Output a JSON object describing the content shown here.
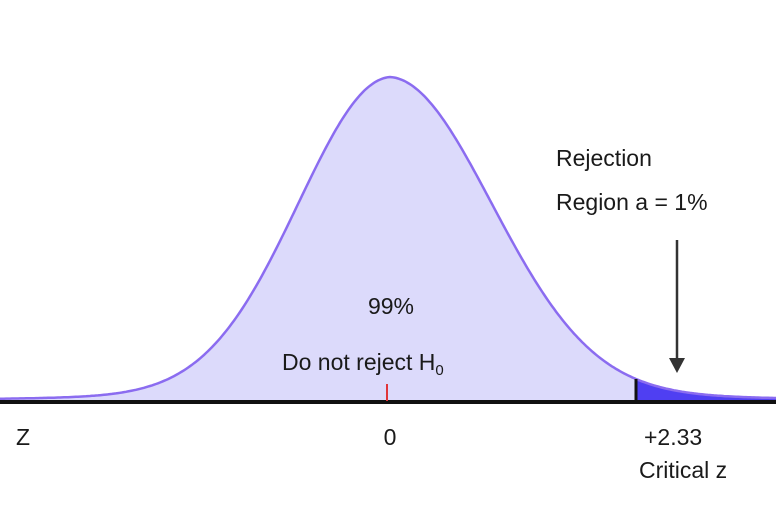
{
  "diagram": {
    "z_label": "Z",
    "center_value": "0",
    "critical_value": "+2.33",
    "critical_caption": "Critical z",
    "body_percent": "99%",
    "body_caption": "Do not reject H",
    "body_caption_sub": "0",
    "rejection_line1": "Rejection",
    "rejection_line2": "Region a = 1%"
  },
  "colors": {
    "fill": "#dcdafb",
    "curve": "#8b6cf0",
    "rejection_fill": "#4f3ff2",
    "axis": "#111111",
    "center_tick": "#e0353a",
    "arrow": "#333333"
  }
}
